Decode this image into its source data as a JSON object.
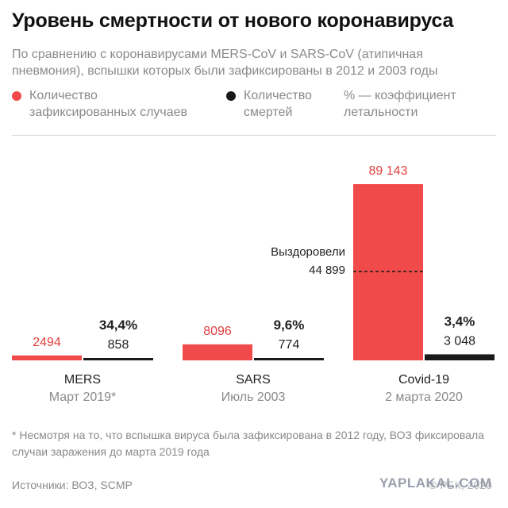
{
  "title": "Уровень смертности от нового коронавируса",
  "subtitle": "По сравнению с коронавирусами MERS-CoV и SARS-CoV (атипичная пневмония), вспышки которых были зафиксированы в 2012 и 2003 годы",
  "legend": {
    "cases": "Количество\nзафиксированных случаев",
    "deaths": "Количество\nсмертей",
    "rate": "% — коэффициент\nлетальности"
  },
  "colors": {
    "cases": "#f04a4a",
    "deaths": "#1a1a1a",
    "cases_text": "#e2403f",
    "muted": "#8a8a8a"
  },
  "chart_data": {
    "type": "bar",
    "categories": [
      "MERS",
      "SARS",
      "Covid-19"
    ],
    "category_dates": [
      "Март 2019*",
      "Июль 2003",
      "2 марта 2020"
    ],
    "series": [
      {
        "name": "Количество зафиксированных случаев",
        "values": [
          2494,
          8096,
          89143
        ],
        "labels": [
          "2494",
          "8096",
          "89 143"
        ]
      },
      {
        "name": "Количество смертей",
        "values": [
          858,
          774,
          3048
        ],
        "labels": [
          "858",
          "774",
          "3 048"
        ]
      }
    ],
    "fatality_rates": [
      "34,4%",
      "9,6%",
      "3,4%"
    ],
    "annotation": {
      "category": "Covid-19",
      "label": "Выздоровели",
      "value": 44899,
      "value_label": "44 899"
    }
  },
  "footnote": "* Несмотря на то, что вспышка вируса была зафиксирована в 2012 году, ВОЗ фиксировала случаи заражения до марта 2019 года",
  "sources": "Источники: ВОЗ, SCMP",
  "copyright": "© РБК, 2020",
  "watermark": "YAPLAKAL.COM"
}
